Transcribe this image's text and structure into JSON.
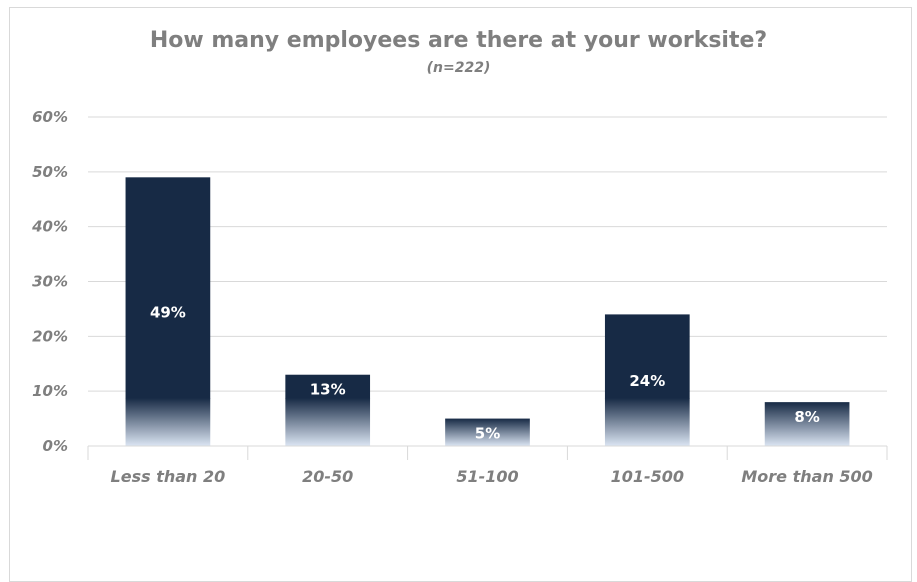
{
  "chart_data": {
    "type": "bar",
    "title": "How many employees are there at your worksite?",
    "subtitle": "(n=222)",
    "categories": [
      "Less than 20",
      "20-50",
      "51-100",
      "101-500",
      "More than 500"
    ],
    "values": [
      49,
      13,
      5,
      24,
      8
    ],
    "data_labels": [
      "49%",
      "13%",
      "5%",
      "24%",
      "8%"
    ],
    "y_ticks": [
      0,
      10,
      20,
      30,
      40,
      50,
      60
    ],
    "y_tick_labels": [
      "0%",
      "10%",
      "20%",
      "30%",
      "40%",
      "50%",
      "60%"
    ],
    "ylim": [
      0,
      60
    ],
    "xlabel": "",
    "ylabel": "",
    "grid": true,
    "legend": "none",
    "colors": {
      "bar": "#172a45",
      "bar_fade": "#dbe5f3",
      "grid": "#d9d9d9",
      "text": "#7f7f7f",
      "label": "#ffffff"
    }
  }
}
